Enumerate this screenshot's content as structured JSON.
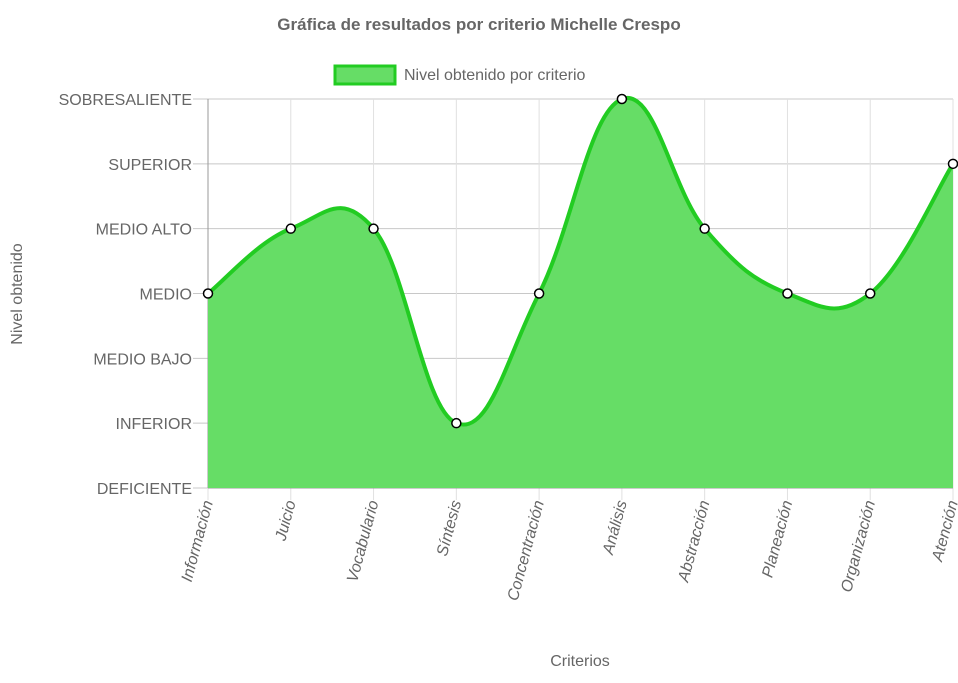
{
  "chart_data": {
    "type": "area",
    "title": "Gráfica de resultados por criterio Michelle Crespo",
    "xlabel": "Criterios",
    "ylabel": "Nivel obtenido",
    "categories": [
      "Información",
      "Juicio",
      "Vocabulario",
      "Síntesis",
      "Concentración",
      "Análisis",
      "Abstracción",
      "Planeación",
      "Organización",
      "Atención"
    ],
    "y_levels": [
      "DEFICIENTE",
      "INFERIOR",
      "MEDIO BAJO",
      "MEDIO",
      "MEDIO ALTO",
      "SUPERIOR",
      "SOBRESALIENTE"
    ],
    "ylim": [
      0,
      6
    ],
    "series": [
      {
        "name": "Nivel obtenido por criterio",
        "values": [
          3,
          4,
          4,
          1,
          3,
          6,
          4,
          3,
          3,
          5
        ],
        "line_color": "#22cc22",
        "fill_color": "#66dd66"
      }
    ],
    "legend_position": "top",
    "grid": true
  }
}
